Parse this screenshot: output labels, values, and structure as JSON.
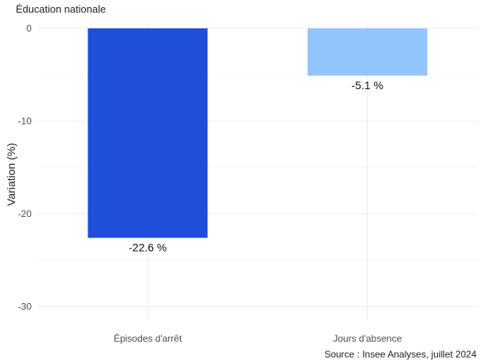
{
  "chart_data": {
    "type": "bar",
    "title": "Éducation nationale",
    "ylabel": "Variation (%)",
    "xlabel": "",
    "categories": [
      "Épisodes d'arrêt",
      "Jours d'absence"
    ],
    "values": [
      -22.6,
      -5.1
    ],
    "data_labels": [
      "-22.6 %",
      "-5.1 %"
    ],
    "colors": [
      "#1f4fd8",
      "#93c5fd"
    ],
    "ylim": [
      -31.5,
      0.5
    ],
    "yticks": [
      0,
      -10,
      -20,
      -30
    ],
    "ytick_labels": [
      "0",
      "-10",
      "-20",
      "-30"
    ],
    "grid": true,
    "caption": "Source : Insee Analyses, juillet 2024"
  }
}
